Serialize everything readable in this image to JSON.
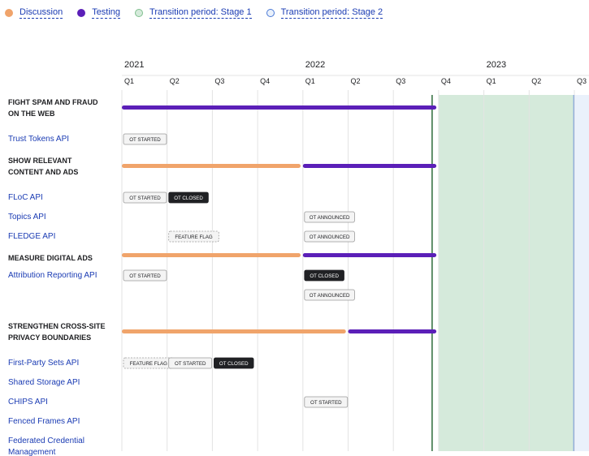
{
  "legend": [
    {
      "label": "Discussion",
      "color": "#f0a46b"
    },
    {
      "label": "Testing",
      "color": "#5b1fb8"
    },
    {
      "label": "Transition period: Stage 1",
      "color": "#d5eadb"
    },
    {
      "label": "Transition period: Stage 2",
      "color": "#eaf1fb"
    }
  ],
  "chart_data": {
    "type": "gantt",
    "years": [
      "2021",
      "2022",
      "2023"
    ],
    "quarters": [
      "Q1",
      "Q2",
      "Q3",
      "Q4",
      "Q1",
      "Q2",
      "Q3",
      "Q4",
      "Q1",
      "Q2",
      "Q3"
    ],
    "bands": [
      {
        "name": "Transition period: Stage 1",
        "start": 7.0,
        "end": 10.0,
        "color": "#d5eadb"
      },
      {
        "name": "Transition period: Stage 2",
        "start": 10.0,
        "end": 11.0,
        "color": "#eaf1fb"
      }
    ],
    "rows": [
      {
        "kind": "group",
        "label_lines": [
          "FIGHT SPAM AND FRAUD",
          "ON THE WEB"
        ],
        "bars": [
          {
            "phase": "Testing",
            "start": 0.0,
            "end": 6.95
          }
        ]
      },
      {
        "kind": "api",
        "label_lines": [
          "Trust Tokens API"
        ],
        "badges": [
          {
            "text": "OT STARTED",
            "style": "outline",
            "q": 0
          }
        ]
      },
      {
        "kind": "group",
        "label_lines": [
          "SHOW RELEVANT",
          "CONTENT AND ADS"
        ],
        "bars": [
          {
            "phase": "Discussion",
            "start": 0.0,
            "end": 3.95
          },
          {
            "phase": "Testing",
            "start": 4.0,
            "end": 6.95
          }
        ]
      },
      {
        "kind": "api",
        "label_lines": [
          "FLoC API"
        ],
        "badges": [
          {
            "text": "OT STARTED",
            "style": "outline",
            "q": 0
          },
          {
            "text": "OT CLOSED",
            "style": "dark",
            "q": 1
          }
        ]
      },
      {
        "kind": "api",
        "label_lines": [
          "Topics API"
        ],
        "badges": [
          {
            "text": "OT ANNOUNCED",
            "style": "outline",
            "q": 4
          }
        ]
      },
      {
        "kind": "api",
        "label_lines": [
          "FLEDGE API"
        ],
        "badges": [
          {
            "text": "FEATURE FLAG",
            "style": "dashed",
            "q": 1
          },
          {
            "text": "OT ANNOUNCED",
            "style": "outline",
            "q": 4
          }
        ]
      },
      {
        "kind": "group",
        "label_lines": [
          "MEASURE DIGITAL ADS"
        ],
        "bars": [
          {
            "phase": "Discussion",
            "start": 0.0,
            "end": 3.95
          },
          {
            "phase": "Testing",
            "start": 4.0,
            "end": 6.95
          }
        ]
      },
      {
        "kind": "api",
        "label_lines": [
          "Attribution Reporting API"
        ],
        "badges": [
          {
            "text": "OT STARTED",
            "style": "outline",
            "q": 0
          },
          {
            "text": "OT CLOSED",
            "style": "dark",
            "q": 4
          }
        ]
      },
      {
        "kind": "api",
        "label_lines": [
          ""
        ],
        "badges": [
          {
            "text": "OT ANNOUNCED",
            "style": "outline",
            "q": 4
          }
        ]
      },
      {
        "kind": "group",
        "label_lines": [
          "STRENGTHEN CROSS-SITE",
          "PRIVACY BOUNDARIES"
        ],
        "bars": [
          {
            "phase": "Discussion",
            "start": 0.0,
            "end": 4.95
          },
          {
            "phase": "Testing",
            "start": 5.0,
            "end": 6.95
          }
        ]
      },
      {
        "kind": "api",
        "label_lines": [
          "First-Party Sets API"
        ],
        "badges": [
          {
            "text": "FEATURE FLAG",
            "style": "dashed",
            "q": 0
          },
          {
            "text": "OT STARTED",
            "style": "outline",
            "q": 1
          },
          {
            "text": "OT CLOSED",
            "style": "dark",
            "q": 2
          }
        ]
      },
      {
        "kind": "api",
        "label_lines": [
          "Shared Storage API"
        ],
        "badges": []
      },
      {
        "kind": "api",
        "label_lines": [
          "CHIPS API"
        ],
        "badges": [
          {
            "text": "OT STARTED",
            "style": "outline",
            "q": 4
          }
        ]
      },
      {
        "kind": "api",
        "label_lines": [
          "Fenced Frames API"
        ],
        "badges": []
      },
      {
        "kind": "api",
        "label_lines": [
          "Federated Credential",
          "Management"
        ],
        "badges": []
      }
    ]
  }
}
